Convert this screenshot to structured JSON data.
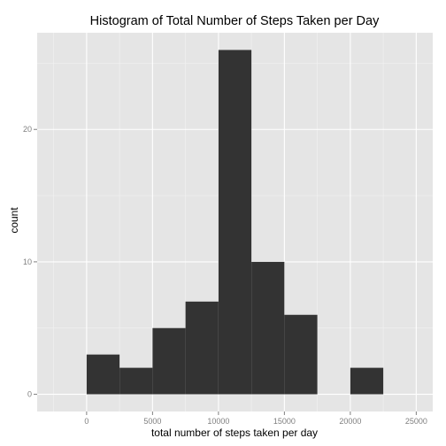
{
  "chart_data": {
    "type": "bar",
    "title": "Histogram of Total Number of Steps Taken per Day",
    "xlabel": "total number of steps taken per day",
    "ylabel": "count",
    "bin_width": 2500,
    "bins": [
      {
        "start": 0,
        "end": 2500,
        "count": 3
      },
      {
        "start": 2500,
        "end": 5000,
        "count": 2
      },
      {
        "start": 5000,
        "end": 7500,
        "count": 5
      },
      {
        "start": 7500,
        "end": 10000,
        "count": 7
      },
      {
        "start": 10000,
        "end": 12500,
        "count": 26
      },
      {
        "start": 12500,
        "end": 15000,
        "count": 10
      },
      {
        "start": 15000,
        "end": 17500,
        "count": 6
      },
      {
        "start": 17500,
        "end": 20000,
        "count": 0
      },
      {
        "start": 20000,
        "end": 22500,
        "count": 2
      }
    ],
    "xlim": [
      -3750,
      26250
    ],
    "ylim": [
      -1.3,
      27.3
    ],
    "x_ticks": [
      0,
      5000,
      10000,
      15000,
      20000,
      25000
    ],
    "y_ticks": [
      0,
      10,
      20
    ],
    "x_tick_labels": [
      "0",
      "5000",
      "10000",
      "15000",
      "20000",
      "25000"
    ],
    "y_tick_labels": [
      "0",
      "10",
      "20"
    ],
    "grid": true,
    "colors": {
      "panel_background": "#e5e5e5",
      "bar_fill": "#333333",
      "grid_major": "#ffffff",
      "grid_minor": "#f2f2f2"
    }
  }
}
